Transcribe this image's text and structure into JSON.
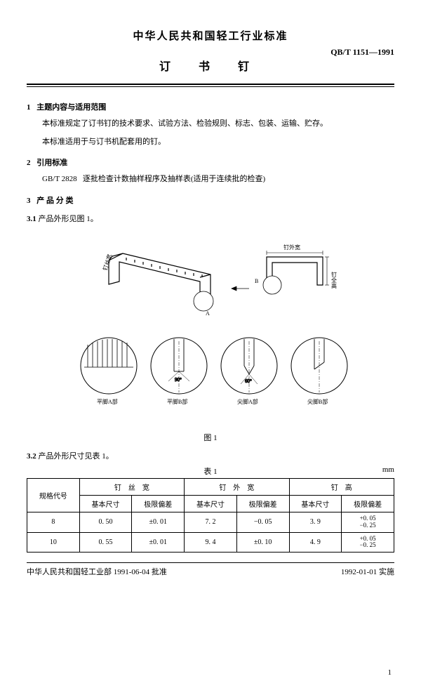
{
  "header": {
    "org_title": "中华人民共和国轻工行业标准",
    "doc_title": "订 书 钉",
    "doc_code": "QB/T 1151—1991"
  },
  "sections": {
    "s1": {
      "num": "1",
      "title": "主题内容与适用范围",
      "p1": "本标准规定了订书钉的技术要求、试验方法、检验规则、标志、包装、运输、贮存。",
      "p2": "本标准适用于与订书机配套用的钉。"
    },
    "s2": {
      "num": "2",
      "title": "引用标准",
      "ref_code": "GB/T 2828",
      "ref_title": "逐批检查计数抽样程序及抽样表(适用于连续批的检查)"
    },
    "s3": {
      "num": "3",
      "title": "产 品 分 类",
      "s31_num": "3.1",
      "s31_text": "产品外形见图 1。",
      "s32_num": "3.2",
      "s32_text": "产品外形尺寸见表 1。"
    }
  },
  "figure": {
    "label": "图 1",
    "annotations": {
      "wire_width": "钉丝宽",
      "outer_width": "钉外宽",
      "full_height": "钉全高",
      "A": "A",
      "B": "B",
      "angle90": "90°",
      "angle60": "60°"
    },
    "details": {
      "d1": "平脚A部",
      "d2": "平脚B部",
      "d3": "尖脚A部",
      "d4": "尖脚B部"
    },
    "styling": {
      "stroke": "#000000",
      "stroke_width": 1.2,
      "stroke_width_thin": 0.6,
      "circle_fill": "#ffffff"
    }
  },
  "table": {
    "caption": "表 1",
    "unit": "mm",
    "headers": {
      "spec": "规格代号",
      "wire": "钉　丝　宽",
      "outer": "钉　外　宽",
      "height": "钉　高",
      "basic": "基本尺寸",
      "tol": "极限偏差"
    },
    "rows": [
      {
        "spec": "8",
        "wire_basic": "0. 50",
        "wire_tol": "±0. 01",
        "outer_basic": "7. 2",
        "outer_tol": "−0. 05",
        "height_basic": "3. 9",
        "height_tol_up": "+0. 05",
        "height_tol_down": "−0. 25"
      },
      {
        "spec": "10",
        "wire_basic": "0. 55",
        "wire_tol": "±0. 01",
        "outer_basic": "9. 4",
        "outer_tol": "±0. 10",
        "height_basic": "4. 9",
        "height_tol_up": "+0. 05",
        "height_tol_down": "−0. 25"
      }
    ]
  },
  "footer": {
    "approve": "中华人民共和国轻工业部 1991-06-04 批准",
    "effective": "1992-01-01 实施",
    "page": "1"
  }
}
